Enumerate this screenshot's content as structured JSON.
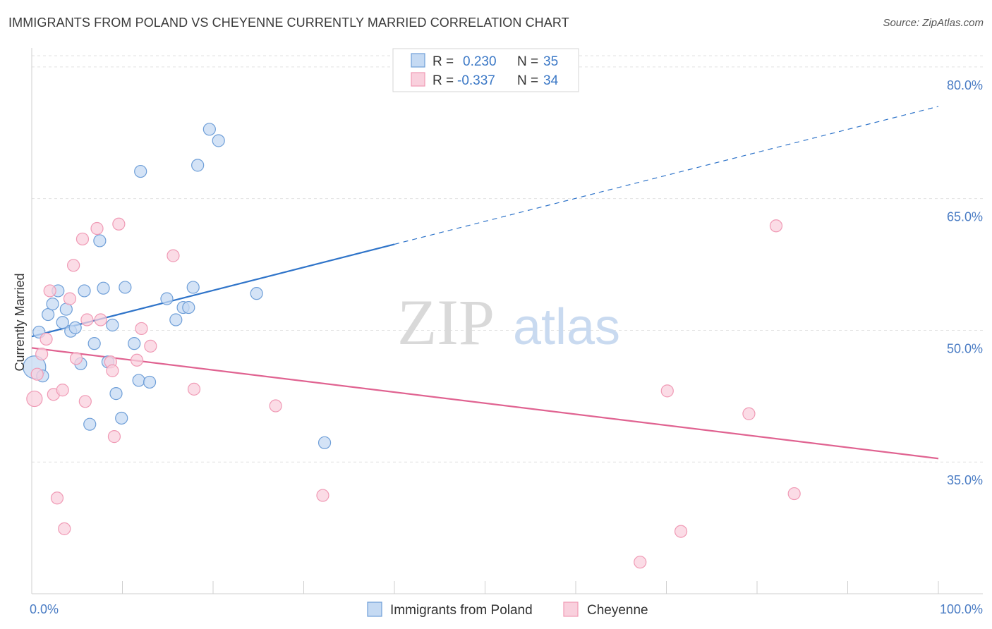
{
  "title": "IMMIGRANTS FROM POLAND VS CHEYENNE CURRENTLY MARRIED CORRELATION CHART",
  "source": "Source: ZipAtlas.com",
  "watermark": {
    "zip": "ZIP",
    "atlas": "atlas"
  },
  "chart_data": {
    "type": "scatter",
    "ylabel": "Currently Married",
    "xlim": [
      0,
      100
    ],
    "ylim": [
      20,
      82
    ],
    "x_tick_labels": [
      "0.0%",
      "100.0%"
    ],
    "y_ticks": [
      {
        "value": 80,
        "label": "80.0%"
      },
      {
        "value": 65,
        "label": "65.0%"
      },
      {
        "value": 50,
        "label": "50.0%"
      },
      {
        "value": 35,
        "label": "35.0%"
      }
    ],
    "grid": true,
    "legend_position": "top-center",
    "stats": [
      {
        "r_label": "R = ",
        "r_value": "0.230",
        "n_label": "N = ",
        "n_value": "35"
      },
      {
        "r_label": "R = ",
        "r_value": "-0.337",
        "n_label": "N = ",
        "n_value": "34"
      }
    ],
    "series": [
      {
        "name": "Immigrants from Poland",
        "color": "#6f9fd8",
        "fill": "#c5daf3",
        "trend": {
          "x0": 0,
          "y0": 49.3,
          "x1": 40,
          "y1": 59.8,
          "dash_x1": 100,
          "dash_y1": 75.5,
          "color": "#2f74c9"
        },
        "points": [
          [
            0.3,
            45.8
          ],
          [
            0.8,
            49.8
          ],
          [
            1.2,
            44.8
          ],
          [
            1.8,
            51.8
          ],
          [
            2.3,
            53.0
          ],
          [
            2.9,
            54.5
          ],
          [
            3.4,
            50.9
          ],
          [
            3.8,
            52.4
          ],
          [
            4.3,
            49.9
          ],
          [
            4.8,
            50.3
          ],
          [
            5.4,
            46.2
          ],
          [
            5.8,
            54.5
          ],
          [
            6.4,
            39.3
          ],
          [
            6.9,
            48.5
          ],
          [
            7.5,
            60.2
          ],
          [
            7.9,
            54.8
          ],
          [
            8.4,
            46.4
          ],
          [
            8.9,
            50.6
          ],
          [
            9.3,
            42.8
          ],
          [
            9.9,
            40.0
          ],
          [
            10.3,
            54.9
          ],
          [
            11.3,
            48.5
          ],
          [
            11.8,
            44.3
          ],
          [
            12.0,
            68.1
          ],
          [
            13.0,
            44.1
          ],
          [
            14.9,
            53.6
          ],
          [
            15.9,
            51.2
          ],
          [
            16.7,
            52.6
          ],
          [
            17.3,
            52.6
          ],
          [
            17.8,
            54.9
          ],
          [
            18.3,
            68.8
          ],
          [
            19.6,
            72.9
          ],
          [
            20.6,
            71.6
          ],
          [
            24.8,
            54.2
          ],
          [
            32.3,
            37.2
          ]
        ]
      },
      {
        "name": "Cheyenne",
        "color": "#f09ab5",
        "fill": "#f9d0dd",
        "trend": {
          "x0": 0,
          "y0": 48.0,
          "x1": 100,
          "y1": 35.4,
          "color": "#e06391"
        },
        "points": [
          [
            0.3,
            42.2
          ],
          [
            0.6,
            45.0
          ],
          [
            1.1,
            47.3
          ],
          [
            1.6,
            49.0
          ],
          [
            2.0,
            54.5
          ],
          [
            2.4,
            42.7
          ],
          [
            2.8,
            30.9
          ],
          [
            3.4,
            43.2
          ],
          [
            3.6,
            27.4
          ],
          [
            4.2,
            53.6
          ],
          [
            4.6,
            57.4
          ],
          [
            4.9,
            46.8
          ],
          [
            5.6,
            60.4
          ],
          [
            5.9,
            41.9
          ],
          [
            6.1,
            51.2
          ],
          [
            7.2,
            61.6
          ],
          [
            7.6,
            51.2
          ],
          [
            8.7,
            46.4
          ],
          [
            8.9,
            45.4
          ],
          [
            9.1,
            37.9
          ],
          [
            9.6,
            62.1
          ],
          [
            11.6,
            46.6
          ],
          [
            12.1,
            50.2
          ],
          [
            13.1,
            48.2
          ],
          [
            15.6,
            58.5
          ],
          [
            17.9,
            43.3
          ],
          [
            26.9,
            41.4
          ],
          [
            32.1,
            31.2
          ],
          [
            67.1,
            23.6
          ],
          [
            70.1,
            43.1
          ],
          [
            71.6,
            27.1
          ],
          [
            79.1,
            40.5
          ],
          [
            82.1,
            61.9
          ],
          [
            84.1,
            31.4
          ]
        ]
      }
    ]
  }
}
